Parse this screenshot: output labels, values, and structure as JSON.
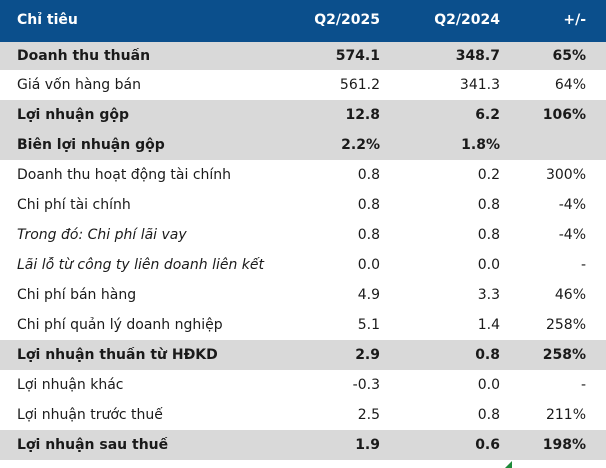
{
  "header": {
    "indicator": "Chỉ tiêu",
    "col1": "Q2/2025",
    "col2": "Q2/2024",
    "col3": "+/-"
  },
  "rows": [
    {
      "label": "Doanh thu thuần",
      "q2_2025": "574.1",
      "q2_2024": "348.7",
      "change": "65%",
      "bold": true,
      "shaded": true
    },
    {
      "label": "Giá vốn hàng bán",
      "q2_2025": "561.2",
      "q2_2024": "341.3",
      "change": "64%"
    },
    {
      "label": "Lợi nhuận gộp",
      "q2_2025": "12.8",
      "q2_2024": "6.2",
      "change": "106%",
      "bold": true,
      "shaded": true
    },
    {
      "label": "Biên lợi nhuận gộp",
      "q2_2025": "2.2%",
      "q2_2024": "1.8%",
      "change": "",
      "bold": true,
      "shaded": true
    },
    {
      "label": "Doanh thu hoạt động tài chính",
      "q2_2025": "0.8",
      "q2_2024": "0.2",
      "change": "300%"
    },
    {
      "label": "Chi phí tài chính",
      "q2_2025": "0.8",
      "q2_2024": "0.8",
      "change": "-4%"
    },
    {
      "label": "Trong đó: Chi phí lãi vay",
      "q2_2025": "0.8",
      "q2_2024": "0.8",
      "change": "-4%",
      "italic": true
    },
    {
      "label": "Lãi lỗ từ công ty liên doanh liên kết",
      "q2_2025": "0.0",
      "q2_2024": "0.0",
      "change": "-",
      "italic": true
    },
    {
      "label": "Chi phí bán hàng",
      "q2_2025": "4.9",
      "q2_2024": "3.3",
      "change": "46%"
    },
    {
      "label": "Chi phí quản lý doanh nghiệp",
      "q2_2025": "5.1",
      "q2_2024": "1.4",
      "change": "258%"
    },
    {
      "label": "Lợi nhuận thuần từ HĐKD",
      "q2_2025": "2.9",
      "q2_2024": "0.8",
      "change": "258%",
      "bold": true,
      "shaded": true
    },
    {
      "label": "Lợi nhuận khác",
      "q2_2025": "-0.3",
      "q2_2024": "0.0",
      "change": "-"
    },
    {
      "label": "Lợi nhuận trước thuế",
      "q2_2025": "2.5",
      "q2_2024": "0.8",
      "change": "211%"
    },
    {
      "label": "Lợi nhuận sau thuế",
      "q2_2025": "1.9",
      "q2_2024": "0.6",
      "change": "198%",
      "bold": true,
      "shaded": true
    }
  ],
  "colors": {
    "header_bg": "#0b4f8c",
    "shaded_row": "#d9d9d9",
    "corner_marker": "#1f8a3a"
  }
}
